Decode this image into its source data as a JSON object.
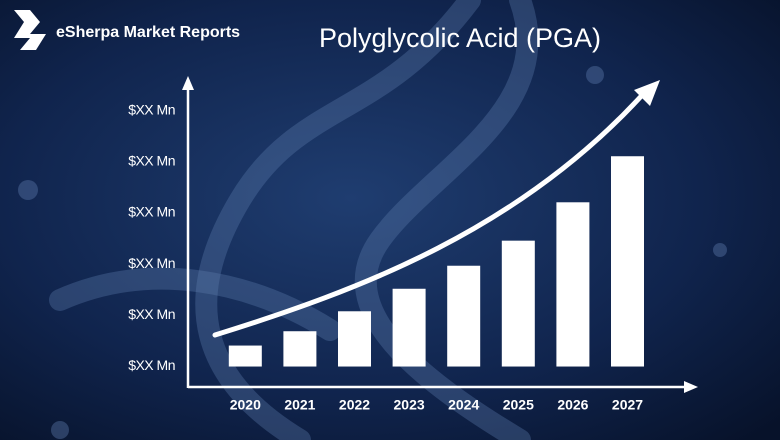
{
  "brand": "eSherpa Market Reports",
  "chart_data": {
    "type": "bar",
    "title": "Polyglycolic Acid (PGA)",
    "categories": [
      "2020",
      "2021",
      "2022",
      "2023",
      "2024",
      "2025",
      "2026",
      "2027"
    ],
    "values": [
      0.41,
      0.69,
      1.08,
      1.52,
      1.97,
      2.46,
      3.21,
      4.11
    ],
    "color": "#ffffff",
    "ylim": [
      -0.4,
      5.6
    ],
    "yticks": [
      {
        "value": 0,
        "label": "$XX Mn"
      },
      {
        "value": 1,
        "label": "$XX Mn"
      },
      {
        "value": 2,
        "label": "$XX Mn"
      },
      {
        "value": 3,
        "label": "$XX Mn"
      },
      {
        "value": 4,
        "label": "$XX Mn"
      },
      {
        "value": 5,
        "label": "$XX Mn"
      }
    ],
    "grid": false
  }
}
